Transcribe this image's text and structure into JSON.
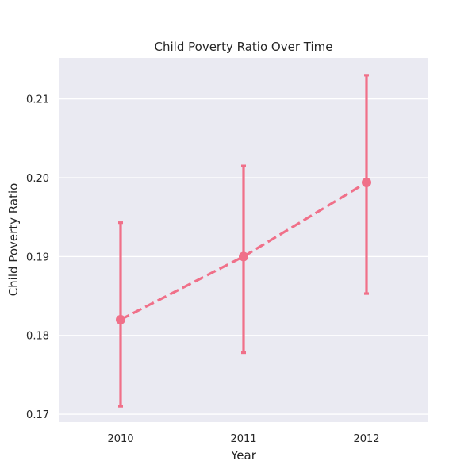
{
  "chart_data": {
    "type": "line",
    "title": "Child Poverty Ratio Over Time",
    "xlabel": "Year",
    "ylabel": "Child Poverty Ratio",
    "categories": [
      "2010",
      "2011",
      "2012"
    ],
    "series": [
      {
        "values": [
          0.182,
          0.19,
          0.1994
        ],
        "error_low": [
          0.171,
          0.1778,
          0.1853
        ],
        "error_high": [
          0.1943,
          0.2015,
          0.213
        ],
        "color": "#f07089",
        "line_style": "dashed",
        "marker": "circle"
      }
    ],
    "ylim": [
      0.169,
      0.2152
    ],
    "yticks": [
      0.17,
      0.18,
      0.19,
      0.2,
      0.21
    ],
    "ytick_labels": [
      "0.17",
      "0.18",
      "0.19",
      "0.20",
      "0.21"
    ],
    "grid": true,
    "background_color": "#eaeaf2",
    "grid_color": "#ffffff"
  }
}
